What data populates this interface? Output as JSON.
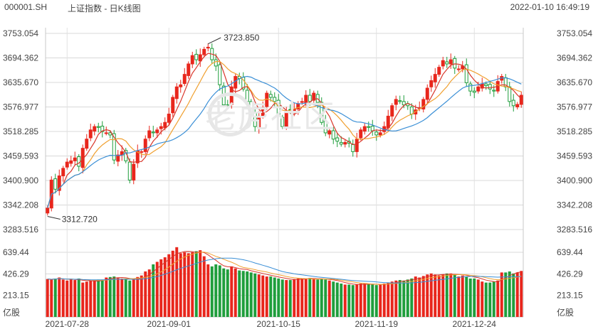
{
  "header": {
    "code": "000001.SH",
    "title": "上证指数 - 日K线图",
    "datetime": "2022-01-10 16:49:19"
  },
  "watermark": {
    "text": "老虎社区"
  },
  "colors": {
    "up": "#e8261c",
    "down": "#1f9e3c",
    "ma5": "#d9362a",
    "ma10": "#f0a030",
    "ma20": "#3a8fd6",
    "grid": "#d8d8d8"
  },
  "chart_data": [
    {
      "type": "candlestick",
      "price_axis_labels": [
        "3753.054",
        "3694.362",
        "3635.670",
        "3576.977",
        "3518.285",
        "3459.593",
        "3400.900",
        "3342.208",
        "3283.516"
      ],
      "ylim": [
        3283.516,
        3753.054
      ],
      "x_tick_labels": [
        "2021-07-28",
        "2021-09-01",
        "2021-10-15",
        "2021-11-19",
        "2021-12-24"
      ],
      "annotations": {
        "high": "3723.850",
        "low": "3312.720"
      },
      "moving_averages": [
        "MA5",
        "MA10",
        "MA20"
      ],
      "closes": [
        3335,
        3402,
        3380,
        3412,
        3430,
        3445,
        3448,
        3455,
        3435,
        3478,
        3500,
        3522,
        3530,
        3528,
        3518,
        3515,
        3510,
        3450,
        3462,
        3470,
        3448,
        3402,
        3440,
        3472,
        3470,
        3500,
        3520,
        3515,
        3522,
        3530,
        3540,
        3560,
        3600,
        3625,
        3630,
        3655,
        3680,
        3700,
        3690,
        3702,
        3715,
        3720,
        3690,
        3675,
        3630,
        3582,
        3580,
        3625,
        3650,
        3645,
        3620,
        3590,
        3560,
        3530,
        3555,
        3575,
        3610,
        3600,
        3590,
        3555,
        3530,
        3568,
        3570,
        3572,
        3585,
        3590,
        3605,
        3590,
        3610,
        3588,
        3540,
        3515,
        3520,
        3500,
        3495,
        3488,
        3492,
        3490,
        3470,
        3500,
        3522,
        3530,
        3528,
        3520,
        3510,
        3515,
        3530,
        3555,
        3580,
        3595,
        3590,
        3582,
        3580,
        3560,
        3570,
        3575,
        3595,
        3622,
        3640,
        3655,
        3672,
        3688,
        3680,
        3690,
        3670,
        3668,
        3675,
        3635,
        3615,
        3612,
        3625,
        3632,
        3628,
        3620,
        3615,
        3638,
        3650,
        3625,
        3590,
        3580,
        3583,
        3605
      ],
      "volume_axis_labels": [
        "639.44",
        "426.29",
        "213.15"
      ],
      "volume_unit": "亿股",
      "volume_ylim": [
        0,
        745
      ],
      "volumes": [
        375,
        370,
        380,
        390,
        370,
        360,
        370,
        365,
        380,
        340,
        350,
        355,
        360,
        370,
        370,
        390,
        395,
        400,
        385,
        380,
        375,
        360,
        370,
        395,
        410,
        450,
        470,
        520,
        545,
        570,
        590,
        620,
        655,
        690,
        630,
        640,
        630,
        640,
        650,
        660,
        600,
        520,
        500,
        520,
        510,
        480,
        470,
        500,
        480,
        460,
        455,
        450,
        440,
        430,
        420,
        410,
        400,
        400,
        390,
        380,
        370,
        365,
        365,
        375,
        380,
        380,
        380,
        385,
        375,
        370,
        380,
        370,
        360,
        350,
        340,
        330,
        320,
        320,
        315,
        320,
        330,
        330,
        325,
        320,
        315,
        320,
        330,
        340,
        350,
        360,
        365,
        360,
        370,
        380,
        400,
        390,
        405,
        420,
        430,
        420,
        410,
        420,
        430,
        430,
        420,
        400,
        410,
        400,
        380,
        380,
        370,
        350,
        340,
        340,
        350,
        360,
        440,
        440,
        450,
        430,
        440,
        455
      ]
    }
  ]
}
